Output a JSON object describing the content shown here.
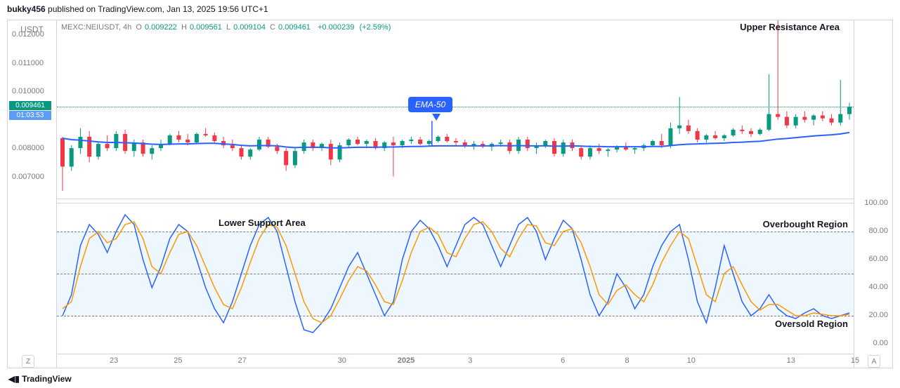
{
  "header": {
    "publisher": "bukky456",
    "published_text": "published on",
    "site": "TradingView.com",
    "timestamp": "Jan 13, 2025 19:56 UTC+1"
  },
  "ticker": {
    "exchange": "MEXC",
    "symbol": "NEIUSDT",
    "timeframe": "4h",
    "open_label": "O",
    "open": "0.009222",
    "high_label": "H",
    "high": "0.009561",
    "low_label": "L",
    "low": "0.009104",
    "close_label": "C",
    "close": "0.009461",
    "change": "+0.000239",
    "change_pct": "(+2.59%)",
    "quote_currency": "USDT"
  },
  "price_chart": {
    "type": "candlestick",
    "ylim": [
      0.0062,
      0.0125
    ],
    "yticks": [
      0.007,
      0.008,
      0.009461,
      0.01,
      0.011,
      0.012
    ],
    "ytick_labels": [
      "0.007000",
      "0.008000",
      "0.009461",
      "0.010000",
      "0.011000",
      "0.012000"
    ],
    "current_price": "0.009461",
    "countdown": "01:03:53",
    "colors": {
      "up": "#089981",
      "down": "#f23645",
      "ema": "#2962ff",
      "background": "#ffffff",
      "grid": "#f0f3fa"
    },
    "candles": [
      {
        "o": 0.00835,
        "h": 0.0084,
        "l": 0.0065,
        "c": 0.00735
      },
      {
        "o": 0.00735,
        "h": 0.0081,
        "l": 0.0072,
        "c": 0.008
      },
      {
        "o": 0.008,
        "h": 0.0087,
        "l": 0.0078,
        "c": 0.0084
      },
      {
        "o": 0.0084,
        "h": 0.0086,
        "l": 0.0075,
        "c": 0.0077
      },
      {
        "o": 0.0077,
        "h": 0.0082,
        "l": 0.0076,
        "c": 0.00815
      },
      {
        "o": 0.00815,
        "h": 0.00845,
        "l": 0.0079,
        "c": 0.008
      },
      {
        "o": 0.008,
        "h": 0.0086,
        "l": 0.0079,
        "c": 0.0085
      },
      {
        "o": 0.0085,
        "h": 0.00865,
        "l": 0.0078,
        "c": 0.0079
      },
      {
        "o": 0.0079,
        "h": 0.0083,
        "l": 0.0077,
        "c": 0.0082
      },
      {
        "o": 0.0082,
        "h": 0.0083,
        "l": 0.0077,
        "c": 0.0078
      },
      {
        "o": 0.0078,
        "h": 0.0081,
        "l": 0.0076,
        "c": 0.008
      },
      {
        "o": 0.008,
        "h": 0.0083,
        "l": 0.0079,
        "c": 0.00815
      },
      {
        "o": 0.00815,
        "h": 0.0085,
        "l": 0.0081,
        "c": 0.00845
      },
      {
        "o": 0.00845,
        "h": 0.0086,
        "l": 0.0082,
        "c": 0.0083
      },
      {
        "o": 0.0083,
        "h": 0.0085,
        "l": 0.0081,
        "c": 0.0082
      },
      {
        "o": 0.0082,
        "h": 0.00855,
        "l": 0.00815,
        "c": 0.0085
      },
      {
        "o": 0.0085,
        "h": 0.0087,
        "l": 0.0084,
        "c": 0.00845
      },
      {
        "o": 0.00845,
        "h": 0.00855,
        "l": 0.0082,
        "c": 0.00825
      },
      {
        "o": 0.00825,
        "h": 0.0084,
        "l": 0.008,
        "c": 0.0081
      },
      {
        "o": 0.0081,
        "h": 0.0083,
        "l": 0.0079,
        "c": 0.008
      },
      {
        "o": 0.008,
        "h": 0.0081,
        "l": 0.0076,
        "c": 0.0077
      },
      {
        "o": 0.0077,
        "h": 0.008,
        "l": 0.0076,
        "c": 0.00795
      },
      {
        "o": 0.00795,
        "h": 0.0084,
        "l": 0.0079,
        "c": 0.0083
      },
      {
        "o": 0.0083,
        "h": 0.0084,
        "l": 0.008,
        "c": 0.00805
      },
      {
        "o": 0.00805,
        "h": 0.00815,
        "l": 0.0078,
        "c": 0.0079
      },
      {
        "o": 0.0079,
        "h": 0.008,
        "l": 0.0072,
        "c": 0.0074
      },
      {
        "o": 0.0074,
        "h": 0.008,
        "l": 0.0073,
        "c": 0.0079
      },
      {
        "o": 0.0079,
        "h": 0.0083,
        "l": 0.0078,
        "c": 0.0082
      },
      {
        "o": 0.0082,
        "h": 0.0083,
        "l": 0.0079,
        "c": 0.008
      },
      {
        "o": 0.008,
        "h": 0.0082,
        "l": 0.0079,
        "c": 0.00815
      },
      {
        "o": 0.00815,
        "h": 0.0083,
        "l": 0.0074,
        "c": 0.0076
      },
      {
        "o": 0.0076,
        "h": 0.0082,
        "l": 0.0075,
        "c": 0.0081
      },
      {
        "o": 0.0081,
        "h": 0.00835,
        "l": 0.008,
        "c": 0.0083
      },
      {
        "o": 0.0083,
        "h": 0.0084,
        "l": 0.0081,
        "c": 0.00815
      },
      {
        "o": 0.00815,
        "h": 0.0083,
        "l": 0.008,
        "c": 0.00825
      },
      {
        "o": 0.00825,
        "h": 0.00835,
        "l": 0.00795,
        "c": 0.008
      },
      {
        "o": 0.008,
        "h": 0.00825,
        "l": 0.0079,
        "c": 0.0082
      },
      {
        "o": 0.0082,
        "h": 0.0084,
        "l": 0.007,
        "c": 0.0081
      },
      {
        "o": 0.0081,
        "h": 0.0083,
        "l": 0.008,
        "c": 0.00825
      },
      {
        "o": 0.00825,
        "h": 0.0084,
        "l": 0.00815,
        "c": 0.0083
      },
      {
        "o": 0.0083,
        "h": 0.0084,
        "l": 0.0081,
        "c": 0.00815
      },
      {
        "o": 0.00815,
        "h": 0.0083,
        "l": 0.00805,
        "c": 0.00825
      },
      {
        "o": 0.00825,
        "h": 0.00845,
        "l": 0.0082,
        "c": 0.0084
      },
      {
        "o": 0.0084,
        "h": 0.0085,
        "l": 0.0082,
        "c": 0.00825
      },
      {
        "o": 0.00825,
        "h": 0.00835,
        "l": 0.0081,
        "c": 0.0082
      },
      {
        "o": 0.0082,
        "h": 0.0083,
        "l": 0.008,
        "c": 0.0081
      },
      {
        "o": 0.0081,
        "h": 0.00825,
        "l": 0.00795,
        "c": 0.00815
      },
      {
        "o": 0.00815,
        "h": 0.00825,
        "l": 0.008,
        "c": 0.00805
      },
      {
        "o": 0.00805,
        "h": 0.0082,
        "l": 0.0079,
        "c": 0.00815
      },
      {
        "o": 0.00815,
        "h": 0.0083,
        "l": 0.00805,
        "c": 0.0082
      },
      {
        "o": 0.0082,
        "h": 0.0083,
        "l": 0.0078,
        "c": 0.0079
      },
      {
        "o": 0.0079,
        "h": 0.0084,
        "l": 0.0078,
        "c": 0.0083
      },
      {
        "o": 0.0083,
        "h": 0.0084,
        "l": 0.0079,
        "c": 0.008
      },
      {
        "o": 0.008,
        "h": 0.0082,
        "l": 0.0078,
        "c": 0.0081
      },
      {
        "o": 0.0081,
        "h": 0.0083,
        "l": 0.008,
        "c": 0.00825
      },
      {
        "o": 0.00825,
        "h": 0.00835,
        "l": 0.0077,
        "c": 0.0078
      },
      {
        "o": 0.0078,
        "h": 0.0083,
        "l": 0.0077,
        "c": 0.0082
      },
      {
        "o": 0.0082,
        "h": 0.0083,
        "l": 0.0079,
        "c": 0.008
      },
      {
        "o": 0.008,
        "h": 0.0081,
        "l": 0.0076,
        "c": 0.0077
      },
      {
        "o": 0.0077,
        "h": 0.0081,
        "l": 0.0076,
        "c": 0.008
      },
      {
        "o": 0.008,
        "h": 0.00815,
        "l": 0.0078,
        "c": 0.0079
      },
      {
        "o": 0.0079,
        "h": 0.008,
        "l": 0.0077,
        "c": 0.00795
      },
      {
        "o": 0.00795,
        "h": 0.0081,
        "l": 0.00785,
        "c": 0.00805
      },
      {
        "o": 0.00805,
        "h": 0.0082,
        "l": 0.0079,
        "c": 0.00795
      },
      {
        "o": 0.00795,
        "h": 0.00805,
        "l": 0.0078,
        "c": 0.008
      },
      {
        "o": 0.008,
        "h": 0.00815,
        "l": 0.0079,
        "c": 0.0081
      },
      {
        "o": 0.0081,
        "h": 0.0083,
        "l": 0.00805,
        "c": 0.00825
      },
      {
        "o": 0.00825,
        "h": 0.0085,
        "l": 0.008,
        "c": 0.0081
      },
      {
        "o": 0.0081,
        "h": 0.0089,
        "l": 0.008,
        "c": 0.0087
      },
      {
        "o": 0.0087,
        "h": 0.0098,
        "l": 0.0085,
        "c": 0.0088
      },
      {
        "o": 0.0088,
        "h": 0.009,
        "l": 0.0085,
        "c": 0.0086
      },
      {
        "o": 0.0086,
        "h": 0.0087,
        "l": 0.0082,
        "c": 0.0083
      },
      {
        "o": 0.0083,
        "h": 0.0085,
        "l": 0.0082,
        "c": 0.00845
      },
      {
        "o": 0.00845,
        "h": 0.0086,
        "l": 0.0083,
        "c": 0.00835
      },
      {
        "o": 0.00835,
        "h": 0.0085,
        "l": 0.00825,
        "c": 0.00845
      },
      {
        "o": 0.00845,
        "h": 0.0087,
        "l": 0.0084,
        "c": 0.00865
      },
      {
        "o": 0.00865,
        "h": 0.0088,
        "l": 0.0085,
        "c": 0.0086
      },
      {
        "o": 0.0086,
        "h": 0.0087,
        "l": 0.0084,
        "c": 0.0085
      },
      {
        "o": 0.0085,
        "h": 0.0087,
        "l": 0.00845,
        "c": 0.00865
      },
      {
        "o": 0.00865,
        "h": 0.0106,
        "l": 0.0086,
        "c": 0.0092
      },
      {
        "o": 0.0092,
        "h": 0.0125,
        "l": 0.009,
        "c": 0.0091
      },
      {
        "o": 0.0091,
        "h": 0.0093,
        "l": 0.0087,
        "c": 0.0088
      },
      {
        "o": 0.0088,
        "h": 0.0092,
        "l": 0.0087,
        "c": 0.0091
      },
      {
        "o": 0.0091,
        "h": 0.0093,
        "l": 0.0089,
        "c": 0.009
      },
      {
        "o": 0.009,
        "h": 0.0092,
        "l": 0.0088,
        "c": 0.00915
      },
      {
        "o": 0.00915,
        "h": 0.0093,
        "l": 0.00895,
        "c": 0.00905
      },
      {
        "o": 0.00905,
        "h": 0.0092,
        "l": 0.0088,
        "c": 0.0089
      },
      {
        "o": 0.0089,
        "h": 0.0104,
        "l": 0.0088,
        "c": 0.0092
      },
      {
        "o": 0.0092,
        "h": 0.0096,
        "l": 0.009,
        "c": 0.00946
      }
    ],
    "ema": [
      0.00835,
      0.0083,
      0.00828,
      0.00825,
      0.00822,
      0.0082,
      0.0082,
      0.00819,
      0.00818,
      0.00816,
      0.00814,
      0.00813,
      0.00814,
      0.00815,
      0.00815,
      0.00816,
      0.00817,
      0.00817,
      0.00815,
      0.00813,
      0.0081,
      0.00808,
      0.00809,
      0.00809,
      0.00808,
      0.00804,
      0.00802,
      0.00803,
      0.00803,
      0.00803,
      0.00801,
      0.00801,
      0.00802,
      0.00803,
      0.00803,
      0.00803,
      0.00804,
      0.00804,
      0.00805,
      0.00806,
      0.00806,
      0.00807,
      0.00808,
      0.00808,
      0.00808,
      0.00808,
      0.00808,
      0.00808,
      0.00808,
      0.00809,
      0.00808,
      0.00809,
      0.00808,
      0.00808,
      0.00808,
      0.00807,
      0.00807,
      0.00808,
      0.00807,
      0.00806,
      0.00806,
      0.00805,
      0.00805,
      0.00805,
      0.00805,
      0.00805,
      0.00806,
      0.00806,
      0.00809,
      0.00812,
      0.00814,
      0.00815,
      0.00816,
      0.00817,
      0.00818,
      0.0082,
      0.00821,
      0.00823,
      0.00824,
      0.00828,
      0.00832,
      0.00834,
      0.00837,
      0.0084,
      0.00843,
      0.00845,
      0.00847,
      0.0085,
      0.00855
    ],
    "annotation_upper": "Upper Resistance Area",
    "ema_label": "EMA-50"
  },
  "indicator": {
    "type": "stochastic",
    "ylim": [
      0,
      100
    ],
    "yticks": [
      0,
      20,
      40,
      60,
      80,
      100
    ],
    "ytick_labels": [
      "0.00",
      "20.00",
      "40.00",
      "60.00",
      "80.00",
      "100.00"
    ],
    "band_upper": 80,
    "band_lower": 20,
    "mid": 50,
    "colors": {
      "k": "#2962ff",
      "d": "#ff9800",
      "band_fill": "rgba(33,150,243,0.08)",
      "dash": "#787b86"
    },
    "k": [
      20,
      35,
      70,
      85,
      78,
      65,
      80,
      92,
      85,
      60,
      40,
      55,
      75,
      85,
      80,
      60,
      40,
      25,
      15,
      30,
      50,
      70,
      85,
      90,
      80,
      55,
      30,
      10,
      8,
      15,
      25,
      40,
      55,
      65,
      50,
      35,
      20,
      30,
      60,
      80,
      88,
      82,
      70,
      55,
      70,
      85,
      90,
      85,
      70,
      55,
      70,
      85,
      90,
      80,
      60,
      75,
      88,
      82,
      60,
      35,
      20,
      30,
      50,
      40,
      25,
      35,
      55,
      70,
      80,
      85,
      60,
      30,
      15,
      40,
      70,
      50,
      30,
      20,
      25,
      35,
      25,
      20,
      18,
      22,
      25,
      20,
      18,
      20,
      22
    ],
    "d": [
      25,
      30,
      55,
      75,
      80,
      72,
      75,
      85,
      87,
      75,
      55,
      50,
      65,
      78,
      80,
      70,
      55,
      40,
      28,
      25,
      40,
      58,
      75,
      85,
      83,
      70,
      50,
      30,
      18,
      15,
      20,
      32,
      45,
      55,
      52,
      42,
      30,
      28,
      45,
      65,
      80,
      83,
      78,
      65,
      62,
      75,
      85,
      87,
      80,
      68,
      62,
      75,
      85,
      84,
      72,
      70,
      80,
      82,
      72,
      55,
      35,
      28,
      38,
      42,
      35,
      30,
      42,
      58,
      70,
      80,
      75,
      55,
      35,
      30,
      50,
      55,
      42,
      30,
      24,
      28,
      28,
      24,
      20,
      20,
      22,
      21,
      20,
      20,
      21
    ],
    "annotation_lower": "Lower Support Area",
    "annotation_ob": "Overbought Region",
    "annotation_os": "Oversold Region"
  },
  "time_axis": {
    "ticks": [
      "23",
      "25",
      "27",
      "30",
      "2025",
      "3",
      "6",
      "8",
      "10",
      "13",
      "15"
    ],
    "positions_pct": [
      8,
      17,
      26,
      40,
      49,
      58,
      71,
      80,
      89,
      103,
      112
    ]
  },
  "footer": {
    "brand": "TradingView",
    "badge_left": "Z",
    "badge_right": "A"
  }
}
